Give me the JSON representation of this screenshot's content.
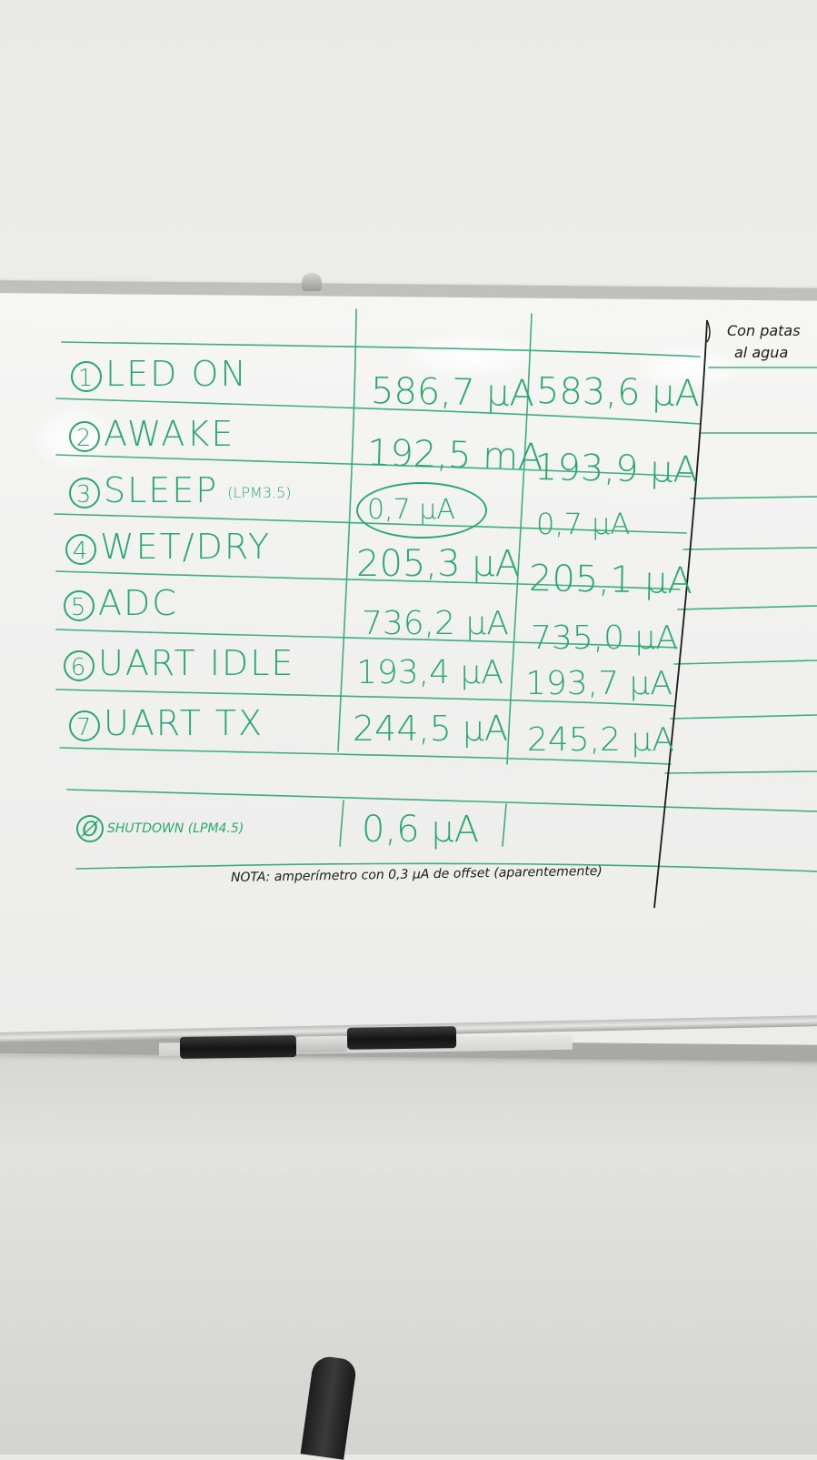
{
  "board": {
    "rows": [
      {
        "num": "1",
        "label": "LED ON",
        "v1": "586,7 μA",
        "v2": "583,6 μA"
      },
      {
        "num": "2",
        "label": "AWAKE",
        "v1": "192,5 mA",
        "v2": "193,9 μA"
      },
      {
        "num": "3",
        "label": "SLEEP",
        "sub": "(LPM3.5)",
        "v1": "0,7 μA",
        "v2": "0,7 μA"
      },
      {
        "num": "4",
        "label": "WET/DRY",
        "v1": "205,3 μA",
        "v2": "205,1 μA"
      },
      {
        "num": "5",
        "label": "ADC",
        "v1": "736,2 μA",
        "v2": "735,0 μA"
      },
      {
        "num": "6",
        "label": "UART IDLE",
        "v1": "193,4 μA",
        "v2": "193,7 μA"
      },
      {
        "num": "7",
        "label": "UART TX",
        "v1": "244,5 μA",
        "v2": "245,2 μA"
      }
    ],
    "shutdown": {
      "num": "Ø",
      "label": "SHUTDOWN (LPM4.5)",
      "v1": "0,6 μA"
    },
    "side_header": {
      "line1": "Con patas",
      "line2": "al agua"
    },
    "note": "NOTA: amperímetro con 0,3 μA de offset (aparentemente)",
    "colors": {
      "ink_green": "#2aa86b",
      "ink_black": "#1b1b1b",
      "board_white": "#f3f3f2",
      "wall": "#e9e9e7"
    }
  }
}
